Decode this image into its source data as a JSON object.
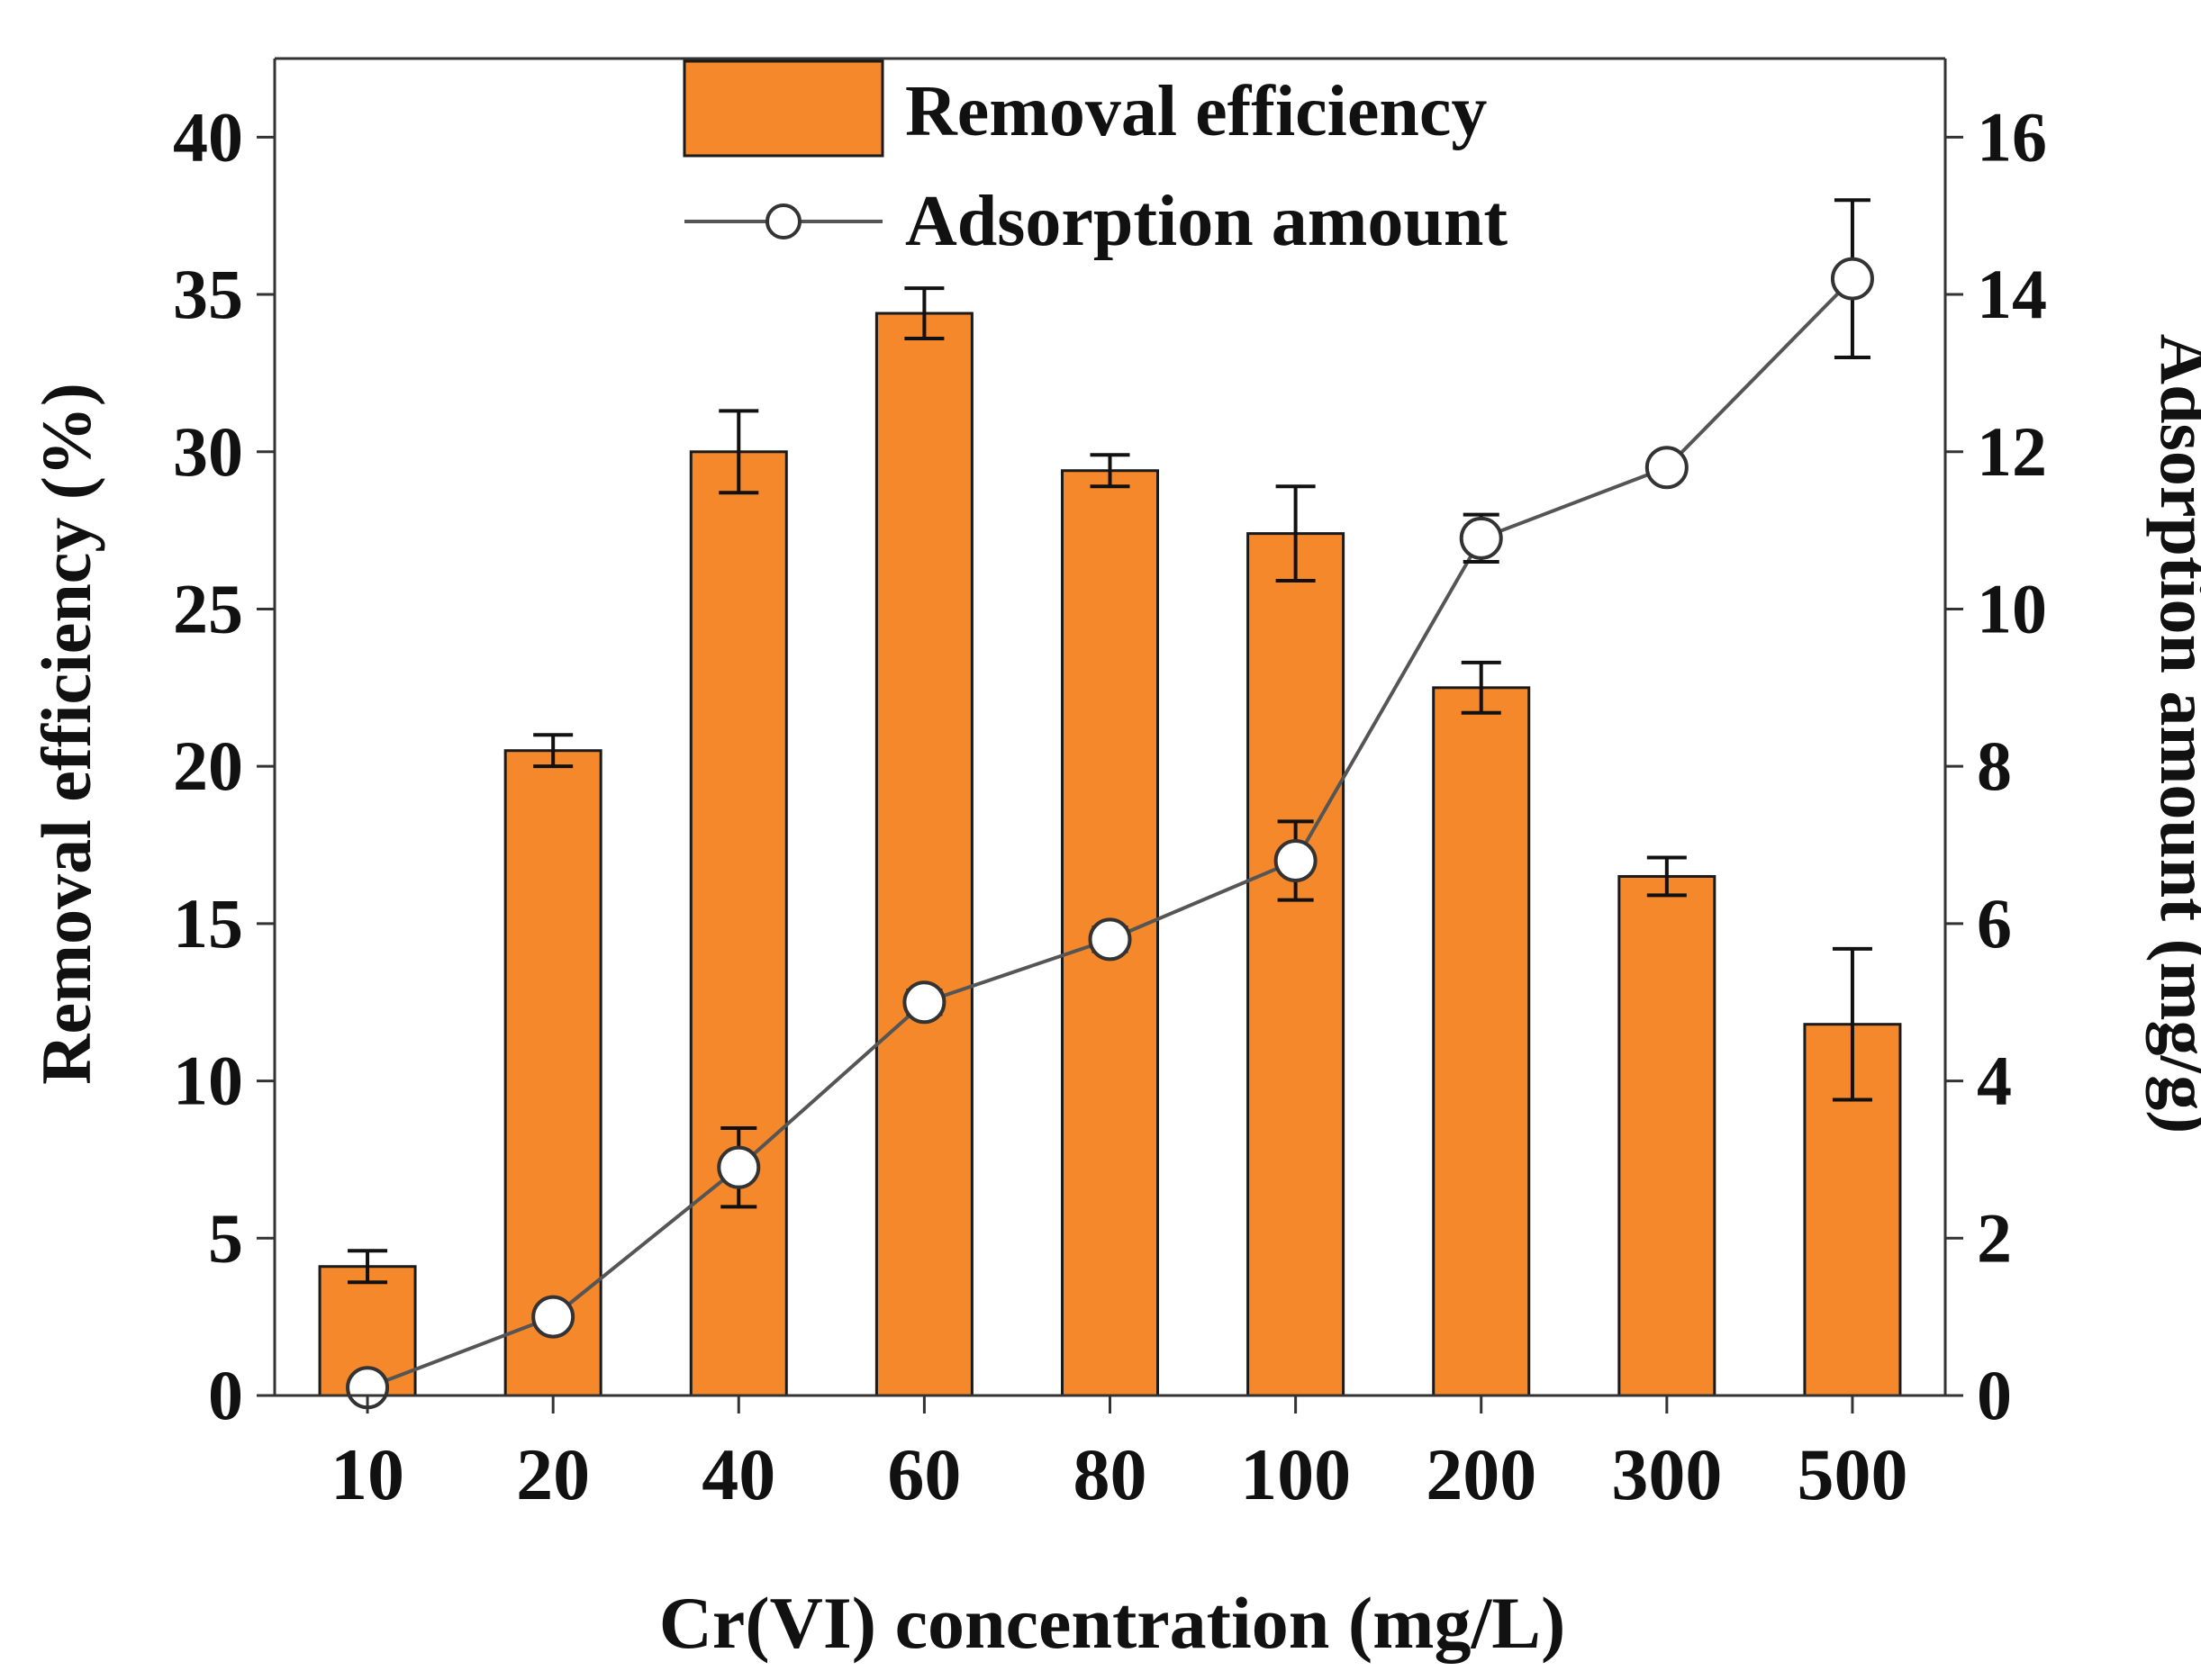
{
  "chart_data": {
    "type": "bar",
    "categories": [
      "10",
      "20",
      "40",
      "60",
      "80",
      "100",
      "200",
      "300",
      "500"
    ],
    "xlabel": "Cr(VI) concentration (mg/L)",
    "ylabel": "Removal efficiency (%)",
    "y2label": "Adsorption amount (mg/g)",
    "ylim": [
      0,
      42.5
    ],
    "y2lim": [
      0,
      17
    ],
    "yticks": [
      "0",
      "5",
      "10",
      "15",
      "20",
      "25",
      "30",
      "35",
      "40"
    ],
    "y2ticks": [
      "0",
      "2",
      "4",
      "6",
      "8",
      "10",
      "12",
      "14",
      "16"
    ],
    "legend_position": "top-center",
    "grid": false,
    "series": [
      {
        "name": "Removal efficiency",
        "type": "bar",
        "axis": "left",
        "color": "#F5882A",
        "values": [
          4.1,
          20.5,
          30.0,
          34.4,
          29.4,
          27.4,
          22.5,
          16.5,
          11.8
        ],
        "errors": [
          0.5,
          0.5,
          1.3,
          0.8,
          0.5,
          1.5,
          0.8,
          0.6,
          2.4
        ]
      },
      {
        "name": "Adsorption amount",
        "type": "line",
        "axis": "right",
        "color": "#555555",
        "values": [
          0.1,
          1.0,
          2.9,
          5.0,
          5.8,
          6.8,
          10.9,
          11.8,
          14.2
        ],
        "errors": [
          0.05,
          0.1,
          0.5,
          0.15,
          0.15,
          0.5,
          0.3,
          0.1,
          1.0
        ]
      }
    ]
  }
}
